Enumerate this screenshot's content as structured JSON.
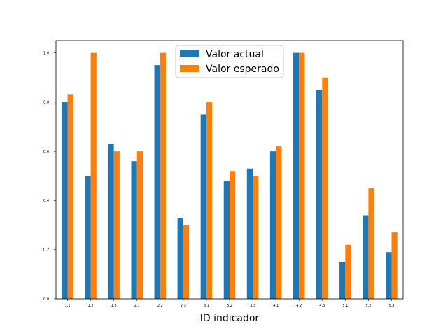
{
  "chart_data": {
    "type": "bar",
    "title": "",
    "xlabel": "ID indicador",
    "ylabel": "",
    "ylim": [
      0,
      1.05
    ],
    "yticks": [
      "0.0",
      "0.2",
      "0.4",
      "0.6",
      "0.8",
      "1.0"
    ],
    "ytick_values": [
      0,
      0.2,
      0.4,
      0.6,
      0.8,
      1.0
    ],
    "grid": false,
    "legend_position": "top-center",
    "categories": [
      "1.1",
      "1.2",
      "1.3",
      "2.1",
      "2.2",
      "2.3",
      "3.1",
      "3.2",
      "3.3",
      "4.1",
      "4.2",
      "4.3",
      "5.1",
      "5.2",
      "5.3"
    ],
    "series": [
      {
        "name": "Valor actual",
        "color": "#1f77b4",
        "values": [
          0.8,
          0.5,
          0.63,
          0.56,
          0.95,
          0.33,
          0.75,
          0.48,
          0.53,
          0.6,
          1.0,
          0.85,
          0.15,
          0.34,
          0.19
        ]
      },
      {
        "name": "Valor esperado",
        "color": "#ff7f0e",
        "values": [
          0.83,
          1.0,
          0.6,
          0.6,
          1.0,
          0.3,
          0.8,
          0.52,
          0.5,
          0.62,
          1.0,
          0.9,
          0.22,
          0.45,
          0.27
        ]
      }
    ]
  }
}
